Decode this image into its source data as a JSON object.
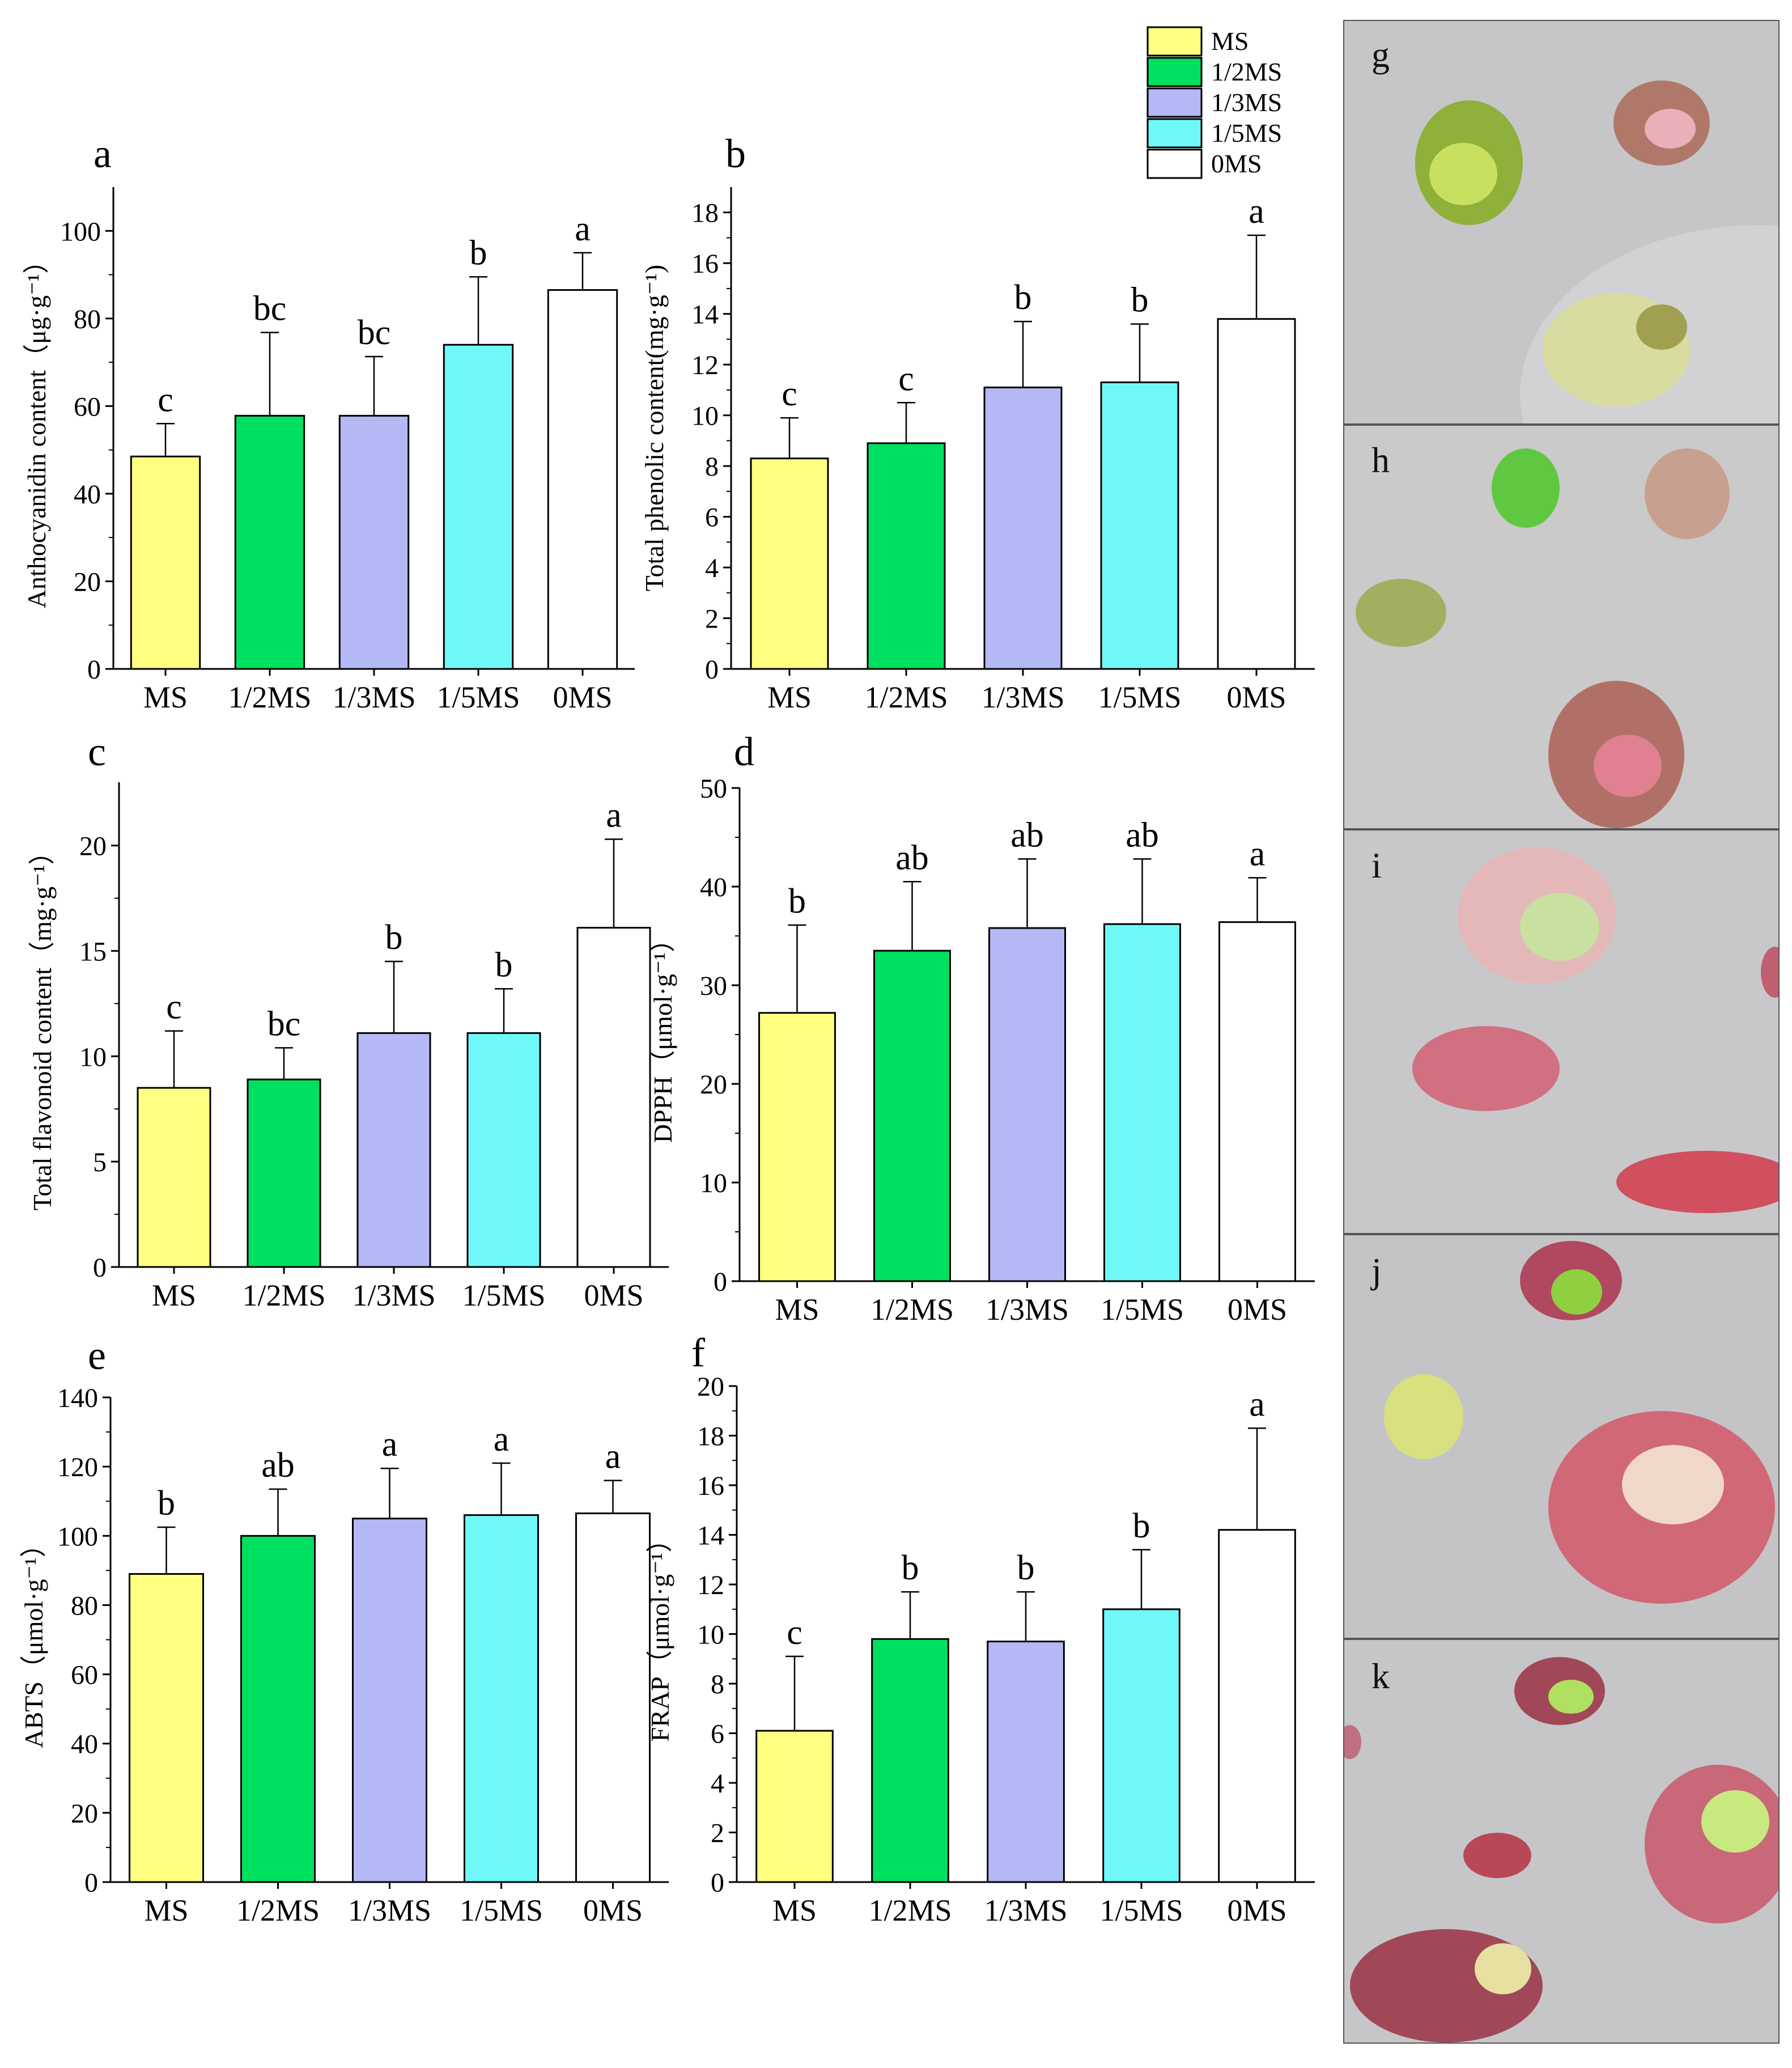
{
  "legend": [
    "MS",
    "1/2MS",
    "1/3MS",
    "1/5MS",
    "0MS"
  ],
  "colors": {
    "MS": "#ffff80",
    "1/2MS": "#00e060",
    "1/3MS": "#b4b8f4",
    "1/5MS": "#70f8f8",
    "0MS": "#ffffff"
  },
  "chart_data": [
    {
      "id": "a",
      "type": "bar",
      "panel_label": "a",
      "categories": [
        "MS",
        "1/2MS",
        "1/3MS",
        "1/5MS",
        "0MS"
      ],
      "values": [
        48.5,
        57.8,
        57.8,
        74.0,
        86.5
      ],
      "errors": [
        7.5,
        19.0,
        13.5,
        15.5,
        8.5
      ],
      "letters": [
        "c",
        "bc",
        "bc",
        "b",
        "a"
      ],
      "ylabel": "Anthocyanidin content（μg·g⁻¹）",
      "ylim": [
        0,
        110
      ],
      "yticks": [
        0,
        20,
        40,
        60,
        80,
        100
      ]
    },
    {
      "id": "b",
      "type": "bar",
      "panel_label": "b",
      "categories": [
        "MS",
        "1/2MS",
        "1/3MS",
        "1/5MS",
        "0MS"
      ],
      "values": [
        8.3,
        8.9,
        11.1,
        11.3,
        13.8
      ],
      "errors": [
        1.6,
        1.6,
        2.6,
        2.3,
        3.3
      ],
      "letters": [
        "c",
        "c",
        "b",
        "b",
        "a"
      ],
      "ylabel": "Total phenolic content(mg·g⁻¹)",
      "ylim": [
        0,
        19
      ],
      "yticks": [
        0,
        2,
        4,
        6,
        8,
        10,
        12,
        14,
        16,
        18
      ]
    },
    {
      "id": "c",
      "type": "bar",
      "panel_label": "c",
      "categories": [
        "MS",
        "1/2MS",
        "1/3MS",
        "1/5MS",
        "0MS"
      ],
      "values": [
        8.5,
        8.9,
        11.1,
        11.1,
        16.1
      ],
      "errors": [
        2.7,
        1.5,
        3.4,
        2.1,
        4.2
      ],
      "letters": [
        "c",
        "bc",
        "b",
        "b",
        "a"
      ],
      "ylabel": "Total flavonoid content（mg·g⁻¹）",
      "ylim": [
        0,
        23
      ],
      "yticks": [
        0,
        5,
        10,
        15,
        20
      ]
    },
    {
      "id": "d",
      "type": "bar",
      "panel_label": "d",
      "categories": [
        "MS",
        "1/2MS",
        "1/3MS",
        "1/5MS",
        "0MS"
      ],
      "values": [
        27.2,
        33.5,
        35.8,
        36.2,
        36.4
      ],
      "errors": [
        8.9,
        7.0,
        7.0,
        6.6,
        4.5
      ],
      "letters": [
        "b",
        "ab",
        "ab",
        "ab",
        "a"
      ],
      "ylabel": "DPPH（μmol·g⁻¹）",
      "ylim": [
        0,
        50
      ],
      "yticks": [
        0,
        10,
        20,
        30,
        40,
        50
      ]
    },
    {
      "id": "e",
      "type": "bar",
      "panel_label": "e",
      "categories": [
        "MS",
        "1/2MS",
        "1/3MS",
        "1/5MS",
        "0MS"
      ],
      "values": [
        89.0,
        100.0,
        105.0,
        106.0,
        106.5
      ],
      "errors": [
        13.5,
        13.5,
        14.5,
        15.0,
        9.5
      ],
      "letters": [
        "b",
        "ab",
        "a",
        "a",
        "a"
      ],
      "ylabel": "ABTS（μmol·g⁻¹）",
      "ylim": [
        0,
        140
      ],
      "yticks": [
        0,
        20,
        40,
        60,
        80,
        100,
        120,
        140
      ]
    },
    {
      "id": "f",
      "type": "bar",
      "panel_label": "f",
      "categories": [
        "MS",
        "1/2MS",
        "1/3MS",
        "1/5MS",
        "0MS"
      ],
      "values": [
        6.1,
        9.8,
        9.7,
        11.0,
        14.2
      ],
      "errors": [
        3.0,
        1.9,
        2.0,
        2.4,
        4.1
      ],
      "letters": [
        "c",
        "b",
        "b",
        "b",
        "a"
      ],
      "ylabel": "FRAP（μmol·g⁻¹）",
      "ylim": [
        0,
        20
      ],
      "yticks": [
        0,
        2,
        4,
        6,
        8,
        10,
        12,
        14,
        16,
        18,
        20
      ]
    }
  ],
  "photos": [
    {
      "label": "g"
    },
    {
      "label": "h"
    },
    {
      "label": "i"
    },
    {
      "label": "j"
    },
    {
      "label": "k"
    }
  ]
}
